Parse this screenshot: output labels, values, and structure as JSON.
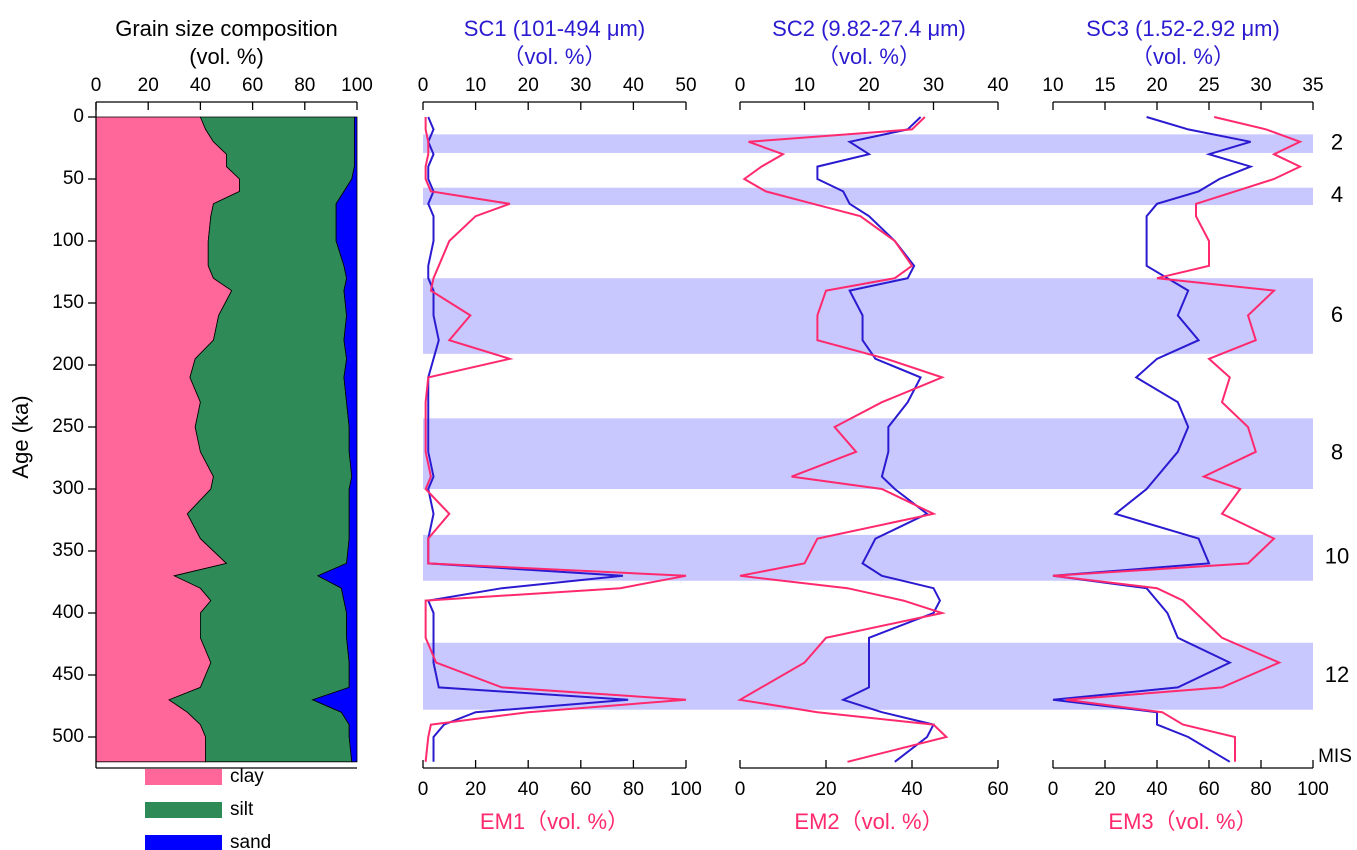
{
  "chart_data": [
    {
      "type": "area",
      "title": "Grain size composition",
      "subtitle": "(vol. %)",
      "ylabel": "Age (ka)",
      "y": [
        0,
        10,
        20,
        30,
        40,
        50,
        60,
        70,
        80,
        100,
        120,
        130,
        140,
        160,
        180,
        195,
        210,
        230,
        250,
        270,
        290,
        300,
        320,
        340,
        360,
        370,
        380,
        390,
        400,
        420,
        440,
        460,
        470,
        480,
        490,
        500,
        520
      ],
      "ylim": [
        0,
        525
      ],
      "yticks": [
        0,
        50,
        100,
        150,
        200,
        250,
        300,
        350,
        400,
        450,
        500
      ],
      "xlim": [
        0,
        100
      ],
      "xticks": [
        0,
        20,
        40,
        60,
        80,
        100
      ],
      "stacked": true,
      "series": [
        {
          "name": "clay",
          "color": "#ff6699",
          "values": [
            40,
            42,
            45,
            50,
            50,
            55,
            55,
            45,
            44,
            43,
            43,
            45,
            52,
            47,
            45,
            38,
            36,
            40,
            38,
            40,
            45,
            44,
            35,
            40,
            50,
            30,
            40,
            44,
            40,
            40,
            44,
            40,
            28,
            35,
            40,
            42,
            42
          ]
        },
        {
          "name": "silt",
          "color": "#2e8b57",
          "values": [
            59,
            57,
            54,
            49,
            49,
            43,
            40,
            47,
            48,
            49,
            52,
            51,
            43,
            49,
            50,
            58,
            59,
            56,
            59,
            57,
            53,
            53,
            62,
            57,
            46,
            55,
            54,
            51,
            56,
            56,
            53,
            57,
            55,
            59,
            57,
            55,
            56
          ]
        },
        {
          "name": "sand",
          "color": "#0000ff",
          "values": [
            1,
            1,
            1,
            1,
            1,
            2,
            5,
            8,
            8,
            8,
            5,
            4,
            5,
            4,
            5,
            4,
            5,
            4,
            3,
            3,
            2,
            3,
            3,
            3,
            4,
            15,
            6,
            5,
            4,
            4,
            3,
            3,
            17,
            6,
            3,
            3,
            2
          ]
        }
      ]
    },
    {
      "type": "line",
      "title": "SC1 (101-494  μm)",
      "subtitle": "（vol. %）",
      "xlabel": "EM1（vol. %）",
      "y": [
        0,
        10,
        20,
        30,
        40,
        50,
        60,
        70,
        80,
        100,
        120,
        130,
        140,
        160,
        180,
        195,
        210,
        230,
        250,
        270,
        290,
        300,
        320,
        340,
        360,
        370,
        380,
        390,
        400,
        420,
        440,
        460,
        470,
        480,
        490,
        500,
        520
      ],
      "ylim": [
        0,
        525
      ],
      "x2lim": [
        0,
        50
      ],
      "x2ticks": [
        0,
        10,
        20,
        30,
        40,
        50
      ],
      "xlim": [
        0,
        100
      ],
      "xticks": [
        0,
        20,
        40,
        60,
        80,
        100
      ],
      "series": [
        {
          "name": "SC1",
          "axis": "x2",
          "color": "#2b1bd0",
          "values": [
            1,
            2,
            1,
            2,
            1,
            1,
            2,
            1,
            2,
            2,
            1,
            1,
            2,
            2,
            3,
            2,
            1,
            1,
            1,
            1,
            2,
            1,
            2,
            1,
            1,
            38,
            15,
            1,
            2,
            2,
            2,
            3,
            39,
            10,
            4,
            2,
            2
          ]
        },
        {
          "name": "EM1",
          "color": "#ff2a6e",
          "values": [
            1,
            1,
            2,
            2,
            1,
            1,
            3,
            33,
            20,
            10,
            6,
            4,
            3,
            18,
            10,
            33,
            2,
            1,
            1,
            1,
            3,
            1,
            10,
            2,
            2,
            100,
            75,
            1,
            1,
            1,
            5,
            30,
            100,
            40,
            3,
            2,
            1
          ]
        }
      ]
    },
    {
      "type": "line",
      "title": "SC2 (9.82-27.4 μm)",
      "subtitle": "（vol. %）",
      "xlabel": "EM2（vol. %）",
      "y": [
        0,
        10,
        20,
        30,
        40,
        50,
        60,
        70,
        80,
        100,
        120,
        130,
        140,
        160,
        180,
        195,
        210,
        230,
        250,
        270,
        290,
        300,
        320,
        340,
        360,
        370,
        380,
        390,
        400,
        420,
        440,
        460,
        470,
        480,
        490,
        500,
        520
      ],
      "ylim": [
        0,
        525
      ],
      "x2lim": [
        0,
        40
      ],
      "x2ticks": [
        0,
        10,
        20,
        30,
        40
      ],
      "xlim": [
        0,
        60
      ],
      "xticks": [
        0,
        20,
        40,
        60
      ],
      "series": [
        {
          "name": "SC2",
          "axis": "x2",
          "color": "#2b1bd0",
          "values": [
            28,
            26,
            17,
            20,
            12,
            12,
            16,
            17,
            20,
            24,
            27,
            26,
            17,
            19,
            19,
            21,
            28,
            26,
            23,
            23,
            22,
            24,
            29,
            21,
            19,
            22,
            30,
            31,
            30,
            20,
            20,
            20,
            16,
            22,
            30,
            29,
            24
          ]
        },
        {
          "name": "EM2",
          "color": "#ff2a6e",
          "values": [
            43,
            40,
            2,
            10,
            5,
            1,
            6,
            17,
            28,
            36,
            40,
            36,
            20,
            18,
            18,
            34,
            47,
            33,
            22,
            27,
            12,
            33,
            45,
            18,
            15,
            0,
            25,
            38,
            47,
            20,
            15,
            5,
            0,
            18,
            45,
            48,
            25
          ]
        }
      ]
    },
    {
      "type": "line",
      "title": "SC3 (1.52-2.92 μm)",
      "subtitle": "（vol. %）",
      "xlabel": "EM3（vol. %）",
      "y": [
        0,
        10,
        20,
        30,
        40,
        50,
        60,
        70,
        80,
        100,
        120,
        130,
        140,
        160,
        180,
        195,
        210,
        230,
        250,
        270,
        290,
        300,
        320,
        340,
        360,
        370,
        380,
        390,
        400,
        420,
        440,
        460,
        470,
        480,
        490,
        500,
        520
      ],
      "ylim": [
        0,
        525
      ],
      "x2lim": [
        10,
        35
      ],
      "x2ticks": [
        10,
        15,
        20,
        25,
        30,
        35
      ],
      "xlim": [
        0,
        100
      ],
      "xticks": [
        0,
        20,
        40,
        60,
        80,
        100
      ],
      "series": [
        {
          "name": "SC3",
          "axis": "x2",
          "color": "#2b1bd0",
          "values": [
            19,
            23,
            29,
            25,
            29,
            26,
            24,
            20,
            19,
            19,
            19,
            21,
            23,
            22,
            24,
            20,
            18,
            22,
            23,
            22,
            20,
            19,
            16,
            24,
            25,
            10,
            19,
            20,
            21,
            22,
            27,
            22,
            10,
            20,
            20,
            23,
            27
          ]
        },
        {
          "name": "EM3",
          "color": "#ff2a6e",
          "values": [
            62,
            82,
            95,
            85,
            95,
            85,
            70,
            55,
            55,
            60,
            60,
            40,
            85,
            75,
            78,
            60,
            68,
            65,
            75,
            78,
            58,
            72,
            65,
            85,
            75,
            0,
            40,
            50,
            55,
            65,
            87,
            65,
            5,
            42,
            50,
            70,
            70
          ]
        }
      ]
    }
  ],
  "mis": {
    "label": "MIS",
    "color": "#c8c8ff",
    "bands": [
      {
        "label": "2",
        "range": [
          14,
          29
        ]
      },
      {
        "label": "4",
        "range": [
          57,
          71
        ]
      },
      {
        "label": "6",
        "range": [
          130,
          191
        ]
      },
      {
        "label": "8",
        "range": [
          243,
          300
        ]
      },
      {
        "label": "10",
        "range": [
          337,
          374
        ]
      },
      {
        "label": "12",
        "range": [
          424,
          478
        ]
      }
    ]
  }
}
